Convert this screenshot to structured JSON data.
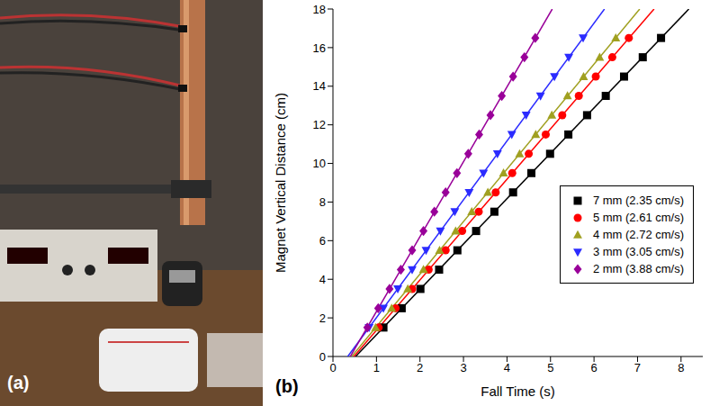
{
  "panel_labels": [
    "(a)",
    "(b)"
  ],
  "chart_data": {
    "type": "scatter",
    "x_label": "Fall Time (s)",
    "y_label": "Magnet Vertical Distance (cm)",
    "xlim": [
      0,
      8.5
    ],
    "xticks": [
      0,
      1,
      2,
      3,
      4,
      5,
      6,
      7,
      8
    ],
    "ylim": [
      0,
      18
    ],
    "yticks": [
      0,
      2,
      4,
      6,
      8,
      10,
      12,
      14,
      16,
      18
    ],
    "grid": false,
    "legend": "lower right",
    "series": [
      {
        "name": "7 mm (2.35 cm/s)",
        "color": "#000000",
        "marker": "square",
        "line_style": "solid",
        "x": [
          1.16,
          1.58,
          2.01,
          2.44,
          2.86,
          3.29,
          3.71,
          4.14,
          4.56,
          4.99,
          5.41,
          5.84,
          6.27,
          6.69,
          7.12,
          7.54
        ],
        "values": [
          1.5,
          2.5,
          3.5,
          4.5,
          5.5,
          6.5,
          7.5,
          8.5,
          9.5,
          10.5,
          11.5,
          12.5,
          13.5,
          14.5,
          15.5,
          16.5
        ],
        "fit_x": [
          0.52,
          8.18
        ],
        "fit_y": [
          0,
          18
        ]
      },
      {
        "name": "5 mm (2.61 cm/s)",
        "color": "#ff0000",
        "marker": "circle",
        "line_style": "solid",
        "x": [
          1.05,
          1.44,
          1.82,
          2.2,
          2.59,
          2.97,
          3.35,
          3.74,
          4.12,
          4.5,
          4.89,
          5.27,
          5.65,
          6.04,
          6.42,
          6.8
        ],
        "values": [
          1.5,
          2.5,
          3.5,
          4.5,
          5.5,
          6.5,
          7.5,
          8.5,
          9.5,
          10.5,
          11.5,
          12.5,
          13.5,
          14.5,
          15.5,
          16.5
        ],
        "fit_x": [
          0.48,
          7.38
        ],
        "fit_y": [
          0,
          18
        ]
      },
      {
        "name": "4 mm (2.72 cm/s)",
        "color": "#a0a020",
        "marker": "triangle",
        "line_style": "solid",
        "x": [
          0.98,
          1.35,
          1.72,
          2.08,
          2.45,
          2.82,
          3.19,
          3.56,
          3.92,
          4.29,
          4.66,
          5.03,
          5.39,
          5.76,
          6.13,
          6.5
        ],
        "values": [
          1.5,
          2.5,
          3.5,
          4.5,
          5.5,
          6.5,
          7.5,
          8.5,
          9.5,
          10.5,
          11.5,
          12.5,
          13.5,
          14.5,
          15.5,
          16.5
        ],
        "fit_x": [
          0.43,
          7.05
        ],
        "fit_y": [
          0,
          18
        ]
      },
      {
        "name": "3 mm (3.05 cm/s)",
        "color": "#2b2bff",
        "marker": "triangle-down",
        "line_style": "solid",
        "x": [
          0.83,
          1.16,
          1.49,
          1.82,
          2.14,
          2.47,
          2.8,
          3.13,
          3.46,
          3.78,
          4.11,
          4.44,
          4.77,
          5.09,
          5.42,
          5.75
        ],
        "values": [
          1.5,
          2.5,
          3.5,
          4.5,
          5.5,
          6.5,
          7.5,
          8.5,
          9.5,
          10.5,
          11.5,
          12.5,
          13.5,
          14.5,
          15.5,
          16.5
        ],
        "fit_x": [
          0.34,
          6.24
        ],
        "fit_y": [
          0,
          18
        ]
      },
      {
        "name": "2 mm (3.88 cm/s)",
        "color": "#990099",
        "marker": "diamond",
        "line_style": "solid",
        "x": [
          0.79,
          1.04,
          1.3,
          1.56,
          1.82,
          2.08,
          2.33,
          2.59,
          2.85,
          3.11,
          3.36,
          3.62,
          3.88,
          4.14,
          4.4,
          4.65
        ],
        "values": [
          1.5,
          2.5,
          3.5,
          4.5,
          5.5,
          6.5,
          7.5,
          8.5,
          9.5,
          10.5,
          11.5,
          12.5,
          13.5,
          14.5,
          15.5,
          16.5
        ],
        "fit_x": [
          0.4,
          5.04
        ],
        "fit_y": [
          0,
          18
        ]
      }
    ]
  }
}
